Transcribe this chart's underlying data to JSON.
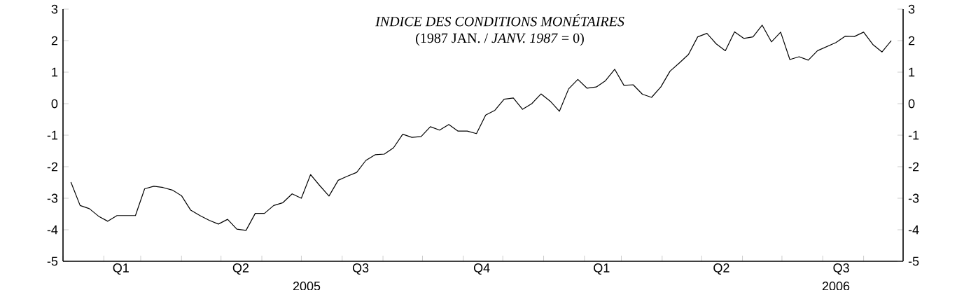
{
  "chart_data": {
    "type": "line",
    "title": "INDICE DES CONDITIONS MONÉTAIRES",
    "subtitle": "(1987 JAN. / *JANV. 1987* = 0)",
    "x": [
      "2005-01-07",
      "2005-01-14",
      "2005-01-21",
      "2005-01-28",
      "2005-02-04",
      "2005-02-11",
      "2005-02-18",
      "2005-02-25",
      "2005-03-04",
      "2005-03-11",
      "2005-03-18",
      "2005-03-25",
      "2005-04-01",
      "2005-04-08",
      "2005-04-15",
      "2005-04-22",
      "2005-04-29",
      "2005-05-06",
      "2005-05-13",
      "2005-05-20",
      "2005-05-27",
      "2005-06-03",
      "2005-06-10",
      "2005-06-17",
      "2005-06-24",
      "2005-07-01",
      "2005-07-08",
      "2005-07-15",
      "2005-07-22",
      "2005-07-29",
      "2005-08-05",
      "2005-08-12",
      "2005-08-19",
      "2005-08-26",
      "2005-09-02",
      "2005-09-09",
      "2005-09-16",
      "2005-09-23",
      "2005-09-30",
      "2005-10-07",
      "2005-10-14",
      "2005-10-21",
      "2005-10-28",
      "2005-11-04",
      "2005-11-11",
      "2005-11-18",
      "2005-11-25",
      "2005-12-02",
      "2005-12-09",
      "2005-12-16",
      "2005-12-23",
      "2005-12-30",
      "2006-01-06",
      "2006-01-13",
      "2006-01-20",
      "2006-01-27",
      "2006-02-03",
      "2006-02-10",
      "2006-02-17",
      "2006-02-24",
      "2006-03-03",
      "2006-03-10",
      "2006-03-17",
      "2006-03-24",
      "2006-03-31",
      "2006-04-07",
      "2006-04-14",
      "2006-04-21",
      "2006-04-28",
      "2006-05-05",
      "2006-05-12",
      "2006-05-19",
      "2006-05-26",
      "2006-06-02",
      "2006-06-09",
      "2006-06-16",
      "2006-06-23",
      "2006-06-30",
      "2006-07-07",
      "2006-07-14",
      "2006-07-21",
      "2006-07-28",
      "2006-08-04",
      "2006-08-11",
      "2006-08-18",
      "2006-08-25",
      "2006-09-01",
      "2006-09-08",
      "2006-09-15",
      "2006-09-22"
    ],
    "series": [
      {
        "color": "#000000",
        "values": [
          -2.49,
          -3.23,
          -3.33,
          -3.57,
          -3.73,
          -3.55,
          -3.55,
          -3.55,
          -2.7,
          -2.62,
          -2.66,
          -2.74,
          -2.92,
          -3.38,
          -3.55,
          -3.7,
          -3.82,
          -3.67,
          -3.98,
          -4.02,
          -3.48,
          -3.48,
          -3.23,
          -3.14,
          -2.86,
          -3.0,
          -2.25,
          -2.6,
          -2.93,
          -2.43,
          -2.3,
          -2.18,
          -1.8,
          -1.62,
          -1.6,
          -1.4,
          -0.97,
          -1.07,
          -1.04,
          -0.73,
          -0.84,
          -0.66,
          -0.87,
          -0.87,
          -0.95,
          -0.36,
          -0.21,
          0.14,
          0.18,
          -0.18,
          0.0,
          0.31,
          0.08,
          -0.24,
          0.47,
          0.77,
          0.49,
          0.53,
          0.73,
          1.09,
          0.58,
          0.6,
          0.3,
          0.2,
          0.53,
          1.03,
          1.29,
          1.56,
          2.12,
          2.23,
          1.9,
          1.68,
          2.28,
          2.07,
          2.12,
          2.49,
          1.96,
          2.27,
          1.4,
          1.49,
          1.38,
          1.68,
          1.81,
          1.94,
          2.14,
          2.13,
          2.27,
          1.88,
          1.64,
          2.0
        ]
      }
    ],
    "xlim": [
      "2005-01-01",
      "2006-10-01"
    ],
    "xticks": [
      {
        "value": "2005-01-01",
        "label": null
      },
      {
        "value": "2005-02-01",
        "label": null
      },
      {
        "value": "2005-03-01",
        "label": null
      },
      {
        "value": "2005-04-01",
        "label": null
      },
      {
        "value": "2005-05-01",
        "label": null
      },
      {
        "value": "2005-06-01",
        "label": null
      },
      {
        "value": "2005-07-01",
        "label": null
      },
      {
        "value": "2005-08-01",
        "label": null
      },
      {
        "value": "2005-09-01",
        "label": null
      },
      {
        "value": "2005-10-01",
        "label": null
      },
      {
        "value": "2005-11-01",
        "label": null
      },
      {
        "value": "2005-12-01",
        "label": null
      },
      {
        "value": "2006-01-01",
        "label": null
      },
      {
        "value": "2006-02-01",
        "label": null
      },
      {
        "value": "2006-03-01",
        "label": null
      },
      {
        "value": "2006-04-01",
        "label": null
      },
      {
        "value": "2006-05-01",
        "label": null
      },
      {
        "value": "2006-06-01",
        "label": null
      },
      {
        "value": "2006-07-01",
        "label": null
      },
      {
        "value": "2006-08-01",
        "label": null
      },
      {
        "value": "2006-09-01",
        "label": null
      },
      {
        "value": "2005-02-14",
        "label": "Q1"
      },
      {
        "value": "2005-05-16",
        "label": "Q2"
      },
      {
        "value": "2005-08-15",
        "label": "Q3"
      },
      {
        "value": "2005-11-15",
        "label": "Q4"
      },
      {
        "value": "2006-02-14",
        "label": "Q1"
      },
      {
        "value": "2006-05-16",
        "label": "Q2"
      },
      {
        "value": "2006-08-15",
        "label": "Q3"
      }
    ],
    "annotations": [
      "2005",
      "2006"
    ],
    "ylim": [
      -5,
      3
    ],
    "yticks": [
      -5,
      -4,
      -3,
      -2,
      -1,
      0,
      1,
      2,
      3
    ],
    "y2lim": [
      -5,
      3
    ],
    "y2ticks": [
      -5,
      -4,
      -3,
      -2,
      -1,
      0,
      1,
      2,
      3
    ]
  }
}
